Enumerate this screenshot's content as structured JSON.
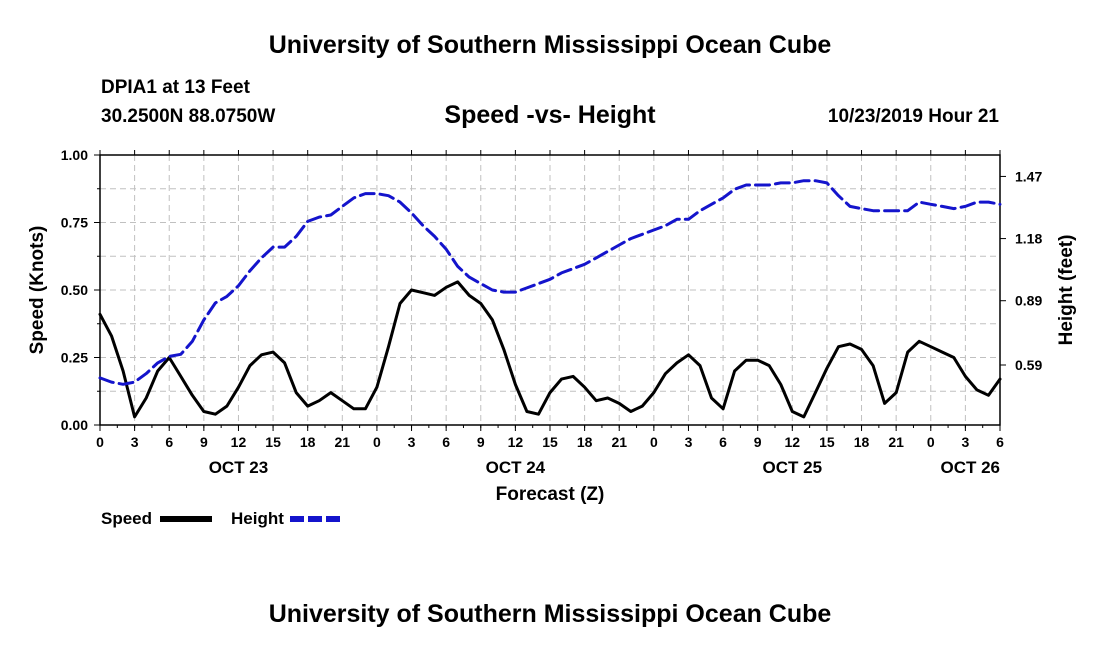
{
  "header": {
    "title": "University of Southern Mississippi Ocean Cube",
    "station": "DPIA1 at 13 Feet",
    "location": "30.2500N 88.0750W",
    "chart_title": "Speed -vs- Height",
    "datetime": "10/23/2019 Hour 21"
  },
  "footer": {
    "title": "University of Southern Mississippi Ocean Cube"
  },
  "legend": {
    "speed_label": "Speed",
    "height_label": "Height",
    "speed_color": "#000000",
    "height_color": "#1414cc"
  },
  "chart_data": {
    "type": "line",
    "title": "Speed -vs- Height",
    "xlabel": "Forecast (Z)",
    "ylabel": "Speed (Knots)",
    "y2label": "Height (feet)",
    "x_unit": "hours from 00Z Oct 23",
    "xlim": [
      0,
      78
    ],
    "ylim": [
      0,
      1
    ],
    "y2lim": [
      0.31,
      1.57
    ],
    "grid": true,
    "x_ticks": [
      0,
      3,
      6,
      9,
      12,
      15,
      18,
      21,
      24,
      27,
      30,
      33,
      36,
      39,
      42,
      45,
      48,
      51,
      54,
      57,
      60,
      63,
      66,
      69,
      72,
      75,
      78
    ],
    "x_tick_labels": [
      "0",
      "3",
      "6",
      "9",
      "12",
      "15",
      "18",
      "21",
      "0",
      "3",
      "6",
      "9",
      "12",
      "15",
      "18",
      "21",
      "0",
      "3",
      "6",
      "9",
      "12",
      "15",
      "18",
      "21",
      "0",
      "3",
      "6"
    ],
    "date_labels": [
      {
        "x": 12,
        "label": "OCT 23"
      },
      {
        "x": 36,
        "label": "OCT 24"
      },
      {
        "x": 60,
        "label": "OCT 25"
      },
      {
        "x": 78,
        "label": "OCT 26"
      }
    ],
    "y_ticks": [
      0.0,
      0.25,
      0.5,
      0.75,
      1.0
    ],
    "y_tick_labels": [
      "0.00",
      "0.25",
      "0.50",
      "0.75",
      "1.00"
    ],
    "y2_ticks": [
      0.59,
      0.89,
      1.18,
      1.47
    ],
    "y2_tick_labels": [
      "0.59",
      "0.89",
      "1.18",
      "1.47"
    ],
    "series": [
      {
        "name": "Speed",
        "axis": "left",
        "style": "solid",
        "color": "#000000",
        "x": [
          0,
          1,
          2,
          3,
          4,
          5,
          6,
          7,
          8,
          9,
          10,
          11,
          12,
          13,
          14,
          15,
          16,
          17,
          18,
          19,
          20,
          21,
          22,
          23,
          24,
          25,
          26,
          27,
          28,
          29,
          30,
          31,
          32,
          33,
          34,
          35,
          36,
          37,
          38,
          39,
          40,
          41,
          42,
          43,
          44,
          45,
          46,
          47,
          48,
          49,
          50,
          51,
          52,
          53,
          54,
          55,
          56,
          57,
          58,
          59,
          60,
          61,
          62,
          63,
          64,
          65,
          66,
          67,
          68,
          69,
          70,
          71,
          72,
          73,
          74,
          75,
          76,
          77,
          78
        ],
        "values": [
          0.41,
          0.33,
          0.2,
          0.03,
          0.1,
          0.2,
          0.25,
          0.18,
          0.11,
          0.05,
          0.04,
          0.07,
          0.14,
          0.22,
          0.26,
          0.27,
          0.23,
          0.12,
          0.07,
          0.09,
          0.12,
          0.09,
          0.06,
          0.06,
          0.14,
          0.29,
          0.45,
          0.5,
          0.49,
          0.48,
          0.51,
          0.53,
          0.48,
          0.45,
          0.39,
          0.28,
          0.15,
          0.05,
          0.04,
          0.12,
          0.17,
          0.18,
          0.14,
          0.09,
          0.1,
          0.08,
          0.05,
          0.07,
          0.12,
          0.19,
          0.23,
          0.26,
          0.22,
          0.1,
          0.06,
          0.2,
          0.24,
          0.24,
          0.22,
          0.15,
          0.05,
          0.03,
          0.12,
          0.21,
          0.29,
          0.3,
          0.28,
          0.22,
          0.08,
          0.12,
          0.27,
          0.31,
          0.29,
          0.27,
          0.25,
          0.18,
          0.13,
          0.11,
          0.17
        ]
      },
      {
        "name": "Height",
        "axis": "right",
        "style": "dashed",
        "color": "#1414cc",
        "x": [
          0,
          1,
          2,
          3,
          4,
          5,
          6,
          7,
          8,
          9,
          10,
          11,
          12,
          13,
          14,
          15,
          16,
          17,
          18,
          19,
          20,
          21,
          22,
          23,
          24,
          25,
          26,
          27,
          28,
          29,
          30,
          31,
          32,
          33,
          34,
          35,
          36,
          37,
          38,
          39,
          40,
          41,
          42,
          43,
          44,
          45,
          46,
          47,
          48,
          49,
          50,
          51,
          52,
          53,
          54,
          55,
          56,
          57,
          58,
          59,
          60,
          61,
          62,
          63,
          64,
          65,
          66,
          67,
          68,
          69,
          70,
          71,
          72,
          73,
          74,
          75,
          76,
          77,
          78
        ],
        "values": [
          0.53,
          0.51,
          0.5,
          0.51,
          0.55,
          0.6,
          0.63,
          0.64,
          0.7,
          0.8,
          0.88,
          0.91,
          0.96,
          1.03,
          1.09,
          1.14,
          1.14,
          1.19,
          1.26,
          1.28,
          1.29,
          1.33,
          1.37,
          1.39,
          1.39,
          1.38,
          1.35,
          1.3,
          1.24,
          1.19,
          1.13,
          1.05,
          1.0,
          0.97,
          0.94,
          0.93,
          0.93,
          0.95,
          0.97,
          0.99,
          1.02,
          1.04,
          1.06,
          1.09,
          1.12,
          1.15,
          1.18,
          1.2,
          1.22,
          1.24,
          1.27,
          1.27,
          1.31,
          1.34,
          1.37,
          1.41,
          1.43,
          1.43,
          1.43,
          1.44,
          1.44,
          1.45,
          1.45,
          1.44,
          1.38,
          1.33,
          1.32,
          1.31,
          1.31,
          1.31,
          1.31,
          1.35,
          1.34,
          1.33,
          1.32,
          1.33,
          1.35,
          1.35,
          1.34
        ]
      }
    ]
  }
}
